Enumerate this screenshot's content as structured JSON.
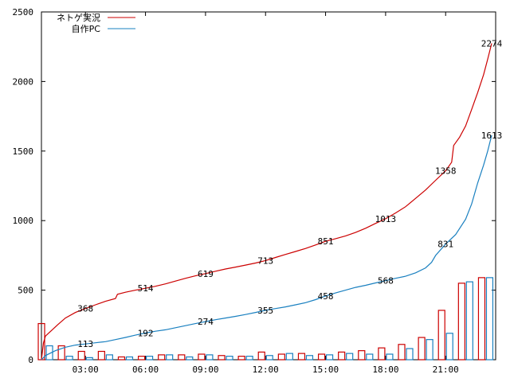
{
  "chart_data": {
    "type": "line",
    "title": "",
    "xlabel": "",
    "ylabel": "",
    "xlim": [
      0.8,
      23.5
    ],
    "ylim": [
      0,
      2500
    ],
    "yticks": [
      0,
      500,
      1000,
      1500,
      2000,
      2500
    ],
    "xticks": [
      {
        "v": 3,
        "label": "03:00"
      },
      {
        "v": 6,
        "label": "06:00"
      },
      {
        "v": 9,
        "label": "09:00"
      },
      {
        "v": 12,
        "label": "12:00"
      },
      {
        "v": 15,
        "label": "15:00"
      },
      {
        "v": 18,
        "label": "18:00"
      },
      {
        "v": 21,
        "label": "21:00"
      }
    ],
    "grid": false,
    "legend_position": "top-left",
    "colors": {
      "series1": "#cc0000",
      "series2": "#1a80c0"
    },
    "series": [
      {
        "name": "ネトゲ実況",
        "points": [
          [
            0.8,
            0
          ],
          [
            0.9,
            120
          ],
          [
            1.0,
            170
          ],
          [
            1.3,
            210
          ],
          [
            1.6,
            250
          ],
          [
            2.0,
            300
          ],
          [
            2.5,
            340
          ],
          [
            3.0,
            368
          ],
          [
            3.5,
            395
          ],
          [
            4.0,
            420
          ],
          [
            4.5,
            440
          ],
          [
            4.6,
            470
          ],
          [
            5.0,
            485
          ],
          [
            5.5,
            500
          ],
          [
            6.0,
            514
          ],
          [
            6.5,
            528
          ],
          [
            7.0,
            545
          ],
          [
            7.5,
            565
          ],
          [
            8.0,
            585
          ],
          [
            8.5,
            603
          ],
          [
            9.0,
            619
          ],
          [
            9.5,
            636
          ],
          [
            10.0,
            652
          ],
          [
            10.5,
            666
          ],
          [
            11.0,
            680
          ],
          [
            11.5,
            695
          ],
          [
            12.0,
            713
          ],
          [
            12.5,
            735
          ],
          [
            13.0,
            757
          ],
          [
            13.5,
            778
          ],
          [
            14.0,
            800
          ],
          [
            14.5,
            825
          ],
          [
            15.0,
            851
          ],
          [
            15.5,
            870
          ],
          [
            16.0,
            890
          ],
          [
            16.5,
            915
          ],
          [
            17.0,
            945
          ],
          [
            17.5,
            980
          ],
          [
            18.0,
            1013
          ],
          [
            18.5,
            1055
          ],
          [
            19.0,
            1100
          ],
          [
            19.5,
            1160
          ],
          [
            20.0,
            1220
          ],
          [
            20.5,
            1290
          ],
          [
            21.0,
            1358
          ],
          [
            21.3,
            1420
          ],
          [
            21.4,
            1540
          ],
          [
            21.7,
            1600
          ],
          [
            22.0,
            1680
          ],
          [
            22.3,
            1800
          ],
          [
            22.6,
            1920
          ],
          [
            22.9,
            2050
          ],
          [
            23.1,
            2160
          ],
          [
            23.3,
            2274
          ]
        ],
        "labels": [
          {
            "x": 3.0,
            "y": 368,
            "text": "368"
          },
          {
            "x": 6.0,
            "y": 514,
            "text": "514"
          },
          {
            "x": 9.0,
            "y": 619,
            "text": "619"
          },
          {
            "x": 12.0,
            "y": 713,
            "text": "713"
          },
          {
            "x": 15.0,
            "y": 851,
            "text": "851"
          },
          {
            "x": 18.0,
            "y": 1013,
            "text": "1013"
          },
          {
            "x": 21.0,
            "y": 1358,
            "text": "1358"
          },
          {
            "x": 23.3,
            "y": 2274,
            "text": "2274"
          }
        ]
      },
      {
        "name": "自作PC",
        "points": [
          [
            0.8,
            0
          ],
          [
            1.0,
            30
          ],
          [
            1.5,
            65
          ],
          [
            2.0,
            90
          ],
          [
            2.5,
            105
          ],
          [
            3.0,
            113
          ],
          [
            3.5,
            122
          ],
          [
            4.0,
            130
          ],
          [
            4.5,
            145
          ],
          [
            5.0,
            160
          ],
          [
            5.5,
            177
          ],
          [
            6.0,
            192
          ],
          [
            6.5,
            205
          ],
          [
            7.0,
            215
          ],
          [
            7.5,
            230
          ],
          [
            8.0,
            245
          ],
          [
            8.5,
            260
          ],
          [
            9.0,
            274
          ],
          [
            9.5,
            288
          ],
          [
            10.0,
            300
          ],
          [
            10.5,
            312
          ],
          [
            11.0,
            325
          ],
          [
            11.5,
            340
          ],
          [
            12.0,
            355
          ],
          [
            12.5,
            368
          ],
          [
            13.0,
            380
          ],
          [
            13.5,
            395
          ],
          [
            14.0,
            410
          ],
          [
            14.5,
            432
          ],
          [
            15.0,
            458
          ],
          [
            15.5,
            480
          ],
          [
            16.0,
            500
          ],
          [
            16.5,
            520
          ],
          [
            17.0,
            535
          ],
          [
            17.5,
            552
          ],
          [
            18.0,
            568
          ],
          [
            18.5,
            585
          ],
          [
            19.0,
            600
          ],
          [
            19.5,
            625
          ],
          [
            20.0,
            660
          ],
          [
            20.3,
            700
          ],
          [
            20.5,
            750
          ],
          [
            21.0,
            831
          ],
          [
            21.5,
            900
          ],
          [
            22.0,
            1010
          ],
          [
            22.3,
            1120
          ],
          [
            22.6,
            1270
          ],
          [
            22.9,
            1400
          ],
          [
            23.1,
            1500
          ],
          [
            23.3,
            1613
          ]
        ],
        "labels": [
          {
            "x": 3.0,
            "y": 113,
            "text": "113"
          },
          {
            "x": 6.0,
            "y": 192,
            "text": "192"
          },
          {
            "x": 9.0,
            "y": 274,
            "text": "274"
          },
          {
            "x": 12.0,
            "y": 355,
            "text": "355"
          },
          {
            "x": 15.0,
            "y": 458,
            "text": "458"
          },
          {
            "x": 18.0,
            "y": 568,
            "text": "568"
          },
          {
            "x": 21.0,
            "y": 831,
            "text": "831"
          },
          {
            "x": 23.3,
            "y": 1613,
            "text": "1613"
          }
        ]
      }
    ],
    "bars": {
      "hours": [
        1,
        2,
        3,
        4,
        5,
        6,
        7,
        8,
        9,
        10,
        11,
        12,
        13,
        14,
        15,
        16,
        17,
        18,
        19,
        20,
        21,
        22,
        23
      ],
      "series1": [
        260,
        100,
        60,
        60,
        20,
        25,
        35,
        35,
        40,
        30,
        25,
        55,
        40,
        45,
        40,
        55,
        65,
        85,
        110,
        160,
        355,
        550,
        590
      ],
      "series2": [
        100,
        25,
        15,
        35,
        20,
        25,
        35,
        20,
        35,
        25,
        25,
        30,
        45,
        30,
        35,
        45,
        40,
        40,
        80,
        145,
        190,
        560,
        590
      ]
    }
  }
}
